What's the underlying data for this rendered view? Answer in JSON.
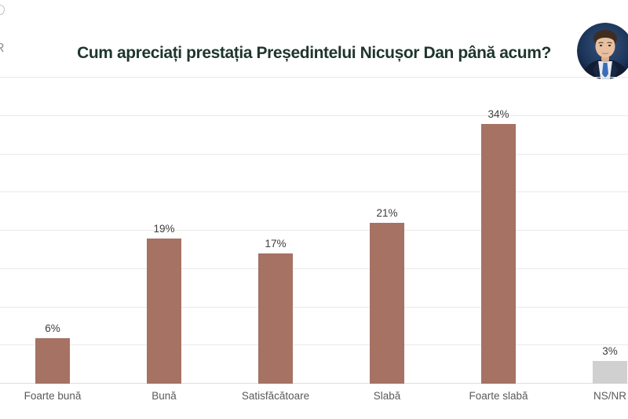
{
  "page": {
    "background_color": "#ffffff"
  },
  "header": {
    "logo_fragment": "R",
    "title": "Cum apreciați prestația Președintelui Nicușor Dan până acum?",
    "title_color": "#1e352d"
  },
  "chart_data": {
    "type": "bar",
    "title": "Cum apreciați prestația Președintelui Nicușor Dan până acum?",
    "categories": [
      "Foarte bună",
      "Bună",
      "Satisfăcătoare",
      "Slabă",
      "Foarte slabă",
      "NS/NR"
    ],
    "values": [
      6,
      19,
      17,
      21,
      34,
      3
    ],
    "value_labels": [
      "6%",
      "19%",
      "17%",
      "21%",
      "34%",
      "3%"
    ],
    "bar_colors": [
      "#a57263",
      "#a57263",
      "#a57263",
      "#a57263",
      "#a57263",
      "#d0d0d0"
    ],
    "xlabel": "",
    "ylabel": "",
    "ylim": [
      0,
      40
    ],
    "grid_step": 5,
    "grid": true,
    "legend": "none",
    "accent_color": "#a57263",
    "nsnr_color": "#d0d0d0",
    "gridline_color": "#e9e9e9",
    "value_label_color": "#3d3d3d",
    "category_label_color": "#5a5a5a"
  }
}
